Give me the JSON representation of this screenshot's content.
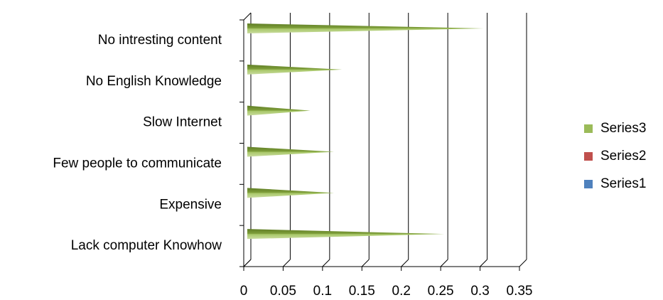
{
  "chart_data": {
    "type": "bar3d_horizontal",
    "categories": [
      "Lack computer Knowhow",
      "Expensive",
      "Few people to communicate",
      "Slow Internet",
      "No English Knowledge",
      "No intresting content"
    ],
    "series": [
      {
        "name": "Series1",
        "color": "#4f81bd",
        "values": [
          0,
          0,
          0,
          0,
          0,
          0
        ]
      },
      {
        "name": "Series2",
        "color": "#c0504d",
        "values": [
          0,
          0,
          0,
          0,
          0,
          0
        ]
      },
      {
        "name": "Series3",
        "color": "#9bbb59",
        "values": [
          0.25,
          0.11,
          0.11,
          0.08,
          0.12,
          0.3
        ]
      }
    ],
    "xlim": [
      0,
      0.35
    ],
    "xticks": [
      0,
      0.05,
      0.1,
      0.15,
      0.2,
      0.25,
      0.3,
      0.35
    ],
    "grid": true,
    "legend": "right"
  }
}
